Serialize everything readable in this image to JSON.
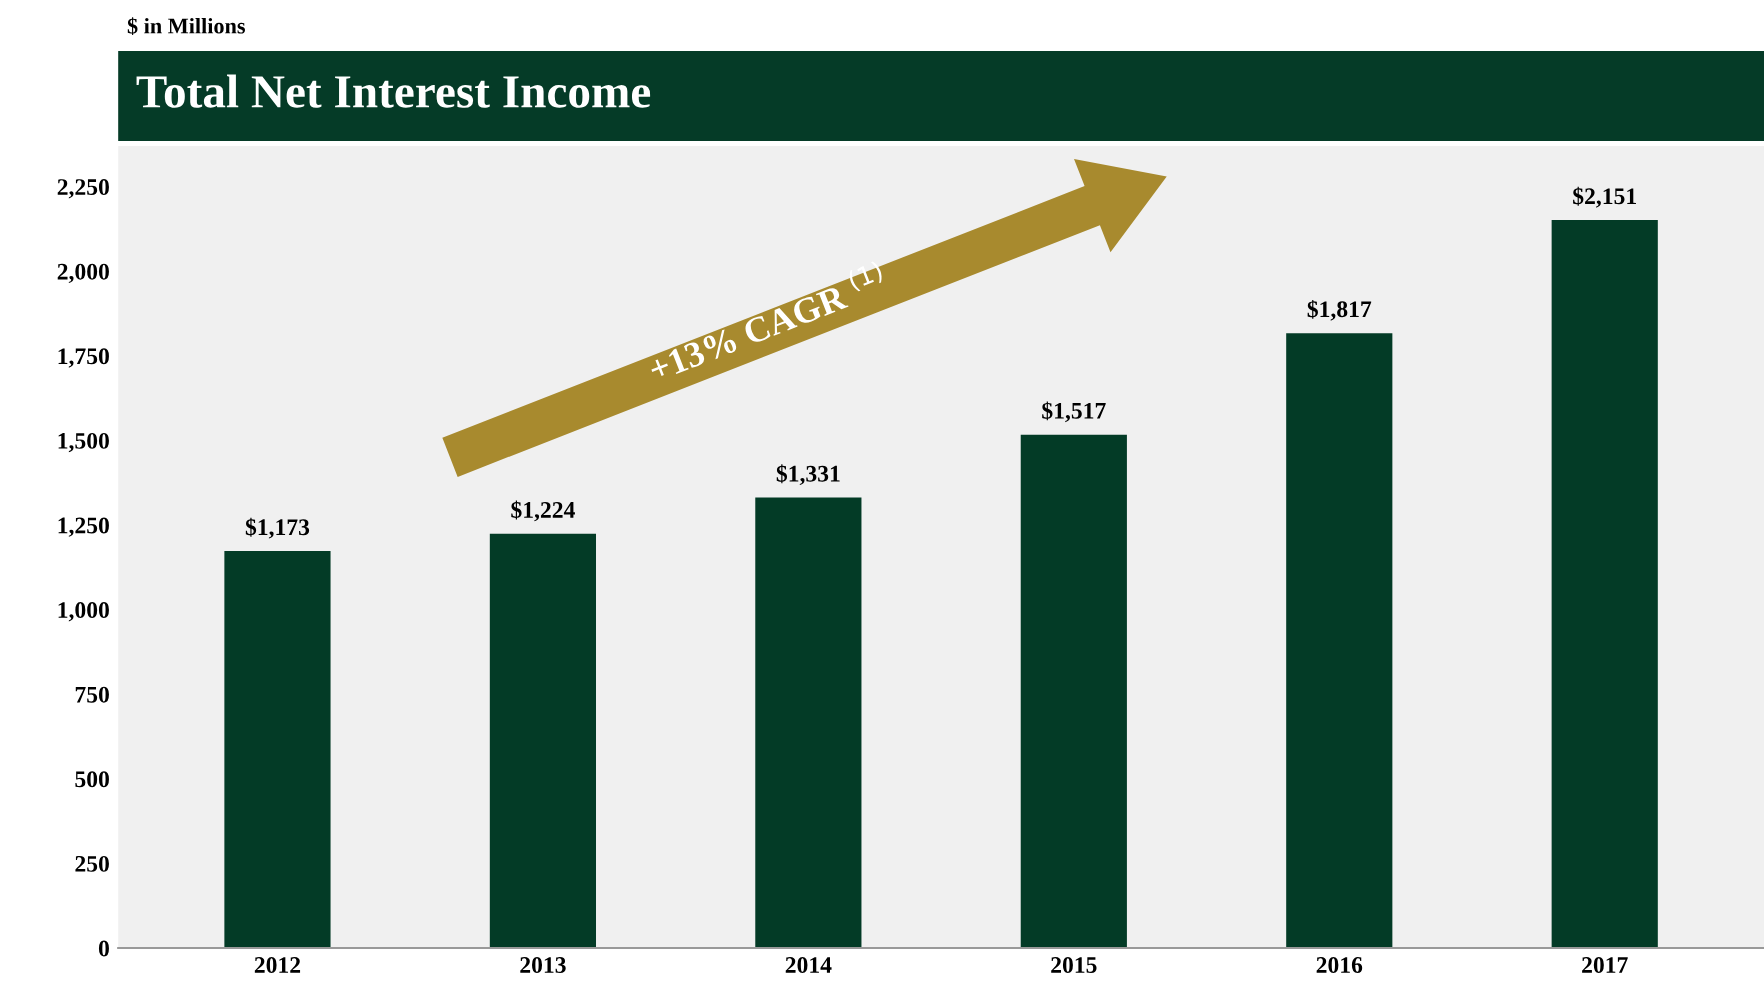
{
  "chart_data": {
    "type": "bar",
    "title": "Total Net Interest Income",
    "ylabel": "$ in Millions",
    "categories": [
      "2012",
      "2013",
      "2014",
      "2015",
      "2016",
      "2017"
    ],
    "values": [
      1173,
      1224,
      1331,
      1517,
      1817,
      2151
    ],
    "value_labels": [
      "$1,173",
      "$1,224",
      "$1,331",
      "$1,517",
      "$1,817",
      "$2,151"
    ],
    "color": "#033b26",
    "ylim": [
      0,
      2370
    ],
    "yticks": [
      0,
      250,
      500,
      750,
      {
        "value": 1000,
        "label": "1,000"
      },
      {
        "value": 1250,
        "label": "1,250"
      },
      {
        "value": 1500,
        "label": "1,500"
      },
      {
        "value": 1750,
        "label": "1,750"
      },
      {
        "value": 2000,
        "label": "2,000"
      },
      {
        "value": 2250,
        "label": "2,250"
      }
    ],
    "annotations": [
      "+13% CAGR $^{(1)}$"
    ],
    "grid": false
  }
}
